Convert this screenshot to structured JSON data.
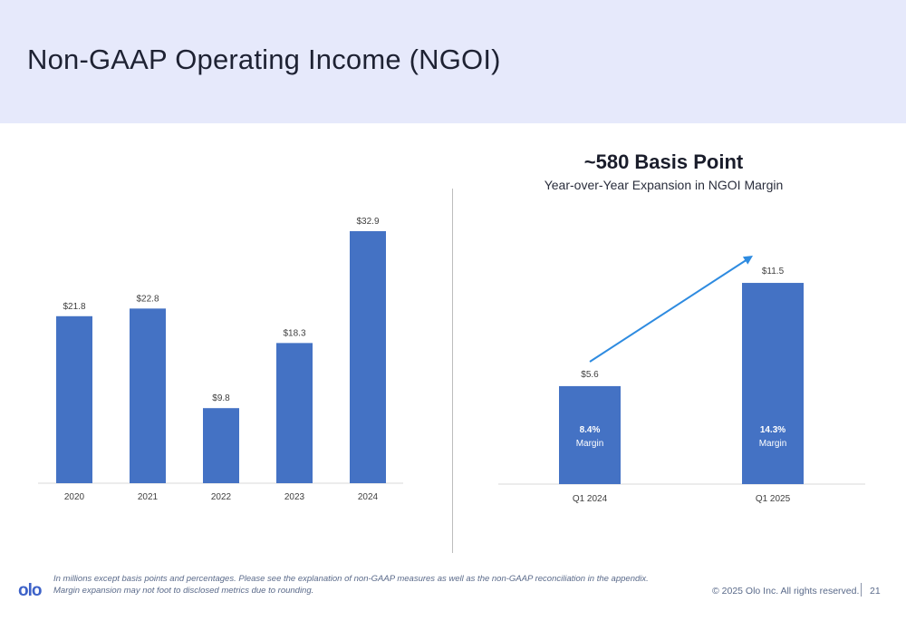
{
  "page": {
    "title": "Non-GAAP Operating Income (NGOI)",
    "headline": "~580 Basis Point",
    "subheadline": "Year-over-Year Expansion in NGOI Margin",
    "footnote_line1": "In millions except basis points and percentages. Please see the explanation of non-GAAP measures as well as the non-GAAP reconciliation in the appendix.",
    "footnote_line2": "Margin expansion may not foot to disclosed metrics due to rounding.",
    "logo_text": "olo",
    "copyright": "© 2025 Olo Inc. All rights reserved.",
    "page_number": "21"
  },
  "colors": {
    "bar": "#4472c4",
    "arrow": "#2e8be0",
    "header_bg": "#e6e9fb"
  },
  "chart_data": [
    {
      "type": "bar",
      "categories": [
        "2020",
        "2021",
        "2022",
        "2023",
        "2024"
      ],
      "values": [
        21.8,
        22.8,
        9.8,
        18.3,
        32.9
      ],
      "data_labels": [
        "$21.8",
        "$22.8",
        "$9.8",
        "$18.3",
        "$32.9"
      ],
      "ylim": [
        0,
        35
      ],
      "grid": false
    },
    {
      "type": "bar",
      "categories": [
        "Q1 2024",
        "Q1 2025"
      ],
      "values": [
        5.6,
        11.5
      ],
      "data_labels": [
        "$5.6",
        "$11.5"
      ],
      "inner_labels": [
        {
          "value": "8.4%",
          "text": "Margin"
        },
        {
          "value": "14.3%",
          "text": "Margin"
        }
      ],
      "annotation": "arrow from Q1 2024 to Q1 2025",
      "ylim": [
        0,
        12.5
      ],
      "grid": false
    }
  ]
}
